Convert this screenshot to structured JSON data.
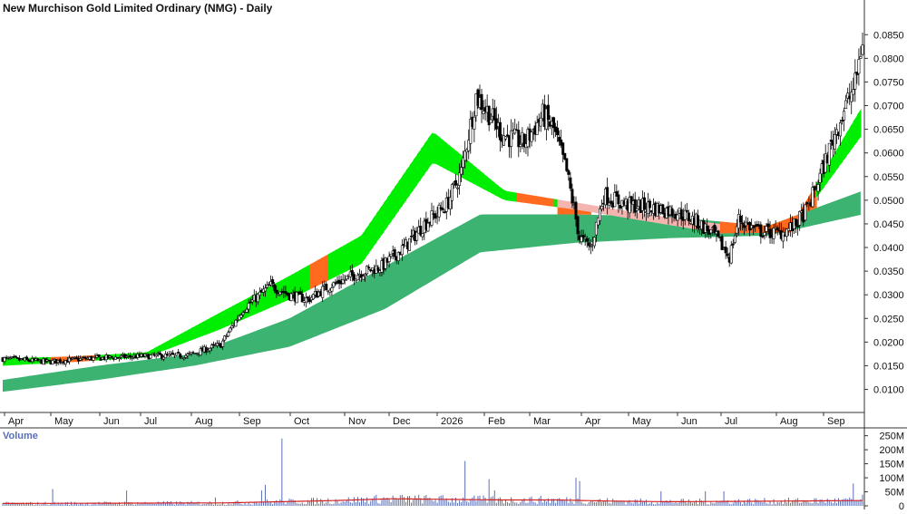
{
  "chart_data": {
    "type": "candlestick",
    "title": "New Murchison Gold Limited Ordinary (NMG) - Daily",
    "volume_label": "Volume",
    "price_axis": {
      "ticks": [
        "0.0850",
        "0.0800",
        "0.0750",
        "0.0700",
        "0.0650",
        "0.0600",
        "0.0550",
        "0.0500",
        "0.0450",
        "0.0400",
        "0.0350",
        "0.0300",
        "0.0250",
        "0.0200",
        "0.0150",
        "0.0100"
      ],
      "range": [
        0.0055,
        0.0885
      ]
    },
    "volume_axis": {
      "ticks": [
        "250M",
        "200M",
        "150M",
        "100M",
        "50M",
        "0"
      ],
      "range": [
        0,
        265
      ]
    },
    "months": [
      "Apr",
      "May",
      "Jun",
      "Jul",
      "Aug",
      "Sep",
      "Oct",
      "Nov",
      "Dec",
      "2026",
      "Feb",
      "Mar",
      "Apr",
      "May",
      "Jun",
      "Jul",
      "Aug",
      "Sep"
    ],
    "price_anchors": [
      [
        0,
        0.0165
      ],
      [
        25,
        0.0158
      ],
      [
        45,
        0.0165
      ],
      [
        75,
        0.017
      ],
      [
        100,
        0.0172
      ],
      [
        118,
        0.0195
      ],
      [
        130,
        0.027
      ],
      [
        145,
        0.032
      ],
      [
        155,
        0.03
      ],
      [
        165,
        0.029
      ],
      [
        175,
        0.0315
      ],
      [
        192,
        0.0345
      ],
      [
        205,
        0.036
      ],
      [
        217,
        0.04
      ],
      [
        228,
        0.045
      ],
      [
        240,
        0.049
      ],
      [
        248,
        0.056
      ],
      [
        256,
        0.072
      ],
      [
        262,
        0.069
      ],
      [
        270,
        0.064
      ],
      [
        282,
        0.062
      ],
      [
        292,
        0.068
      ],
      [
        298,
        0.065
      ],
      [
        305,
        0.056
      ],
      [
        312,
        0.042
      ],
      [
        318,
        0.04
      ],
      [
        325,
        0.051
      ],
      [
        338,
        0.049
      ],
      [
        350,
        0.0485
      ],
      [
        365,
        0.0475
      ],
      [
        375,
        0.0455
      ],
      [
        385,
        0.0425
      ],
      [
        393,
        0.038
      ],
      [
        398,
        0.046
      ],
      [
        408,
        0.0435
      ],
      [
        420,
        0.043
      ],
      [
        428,
        0.0445
      ],
      [
        435,
        0.048
      ],
      [
        442,
        0.055
      ],
      [
        450,
        0.064
      ],
      [
        456,
        0.07
      ],
      [
        461,
        0.0745
      ],
      [
        465,
        0.084
      ]
    ],
    "trend_bands": [
      {
        "name": "short-term",
        "upper": [
          0.0165,
          0.017,
          0.0178,
          0.026,
          0.034,
          0.0425,
          0.0645,
          0.052,
          0.0495,
          0.047,
          0.045,
          0.0445,
          0.07
        ],
        "lower": [
          0.015,
          0.0158,
          0.0168,
          0.0225,
          0.029,
          0.0365,
          0.058,
          0.05,
          0.048,
          0.0455,
          0.043,
          0.0432,
          0.064
        ]
      },
      {
        "name": "long-term",
        "upper": [
          0.012,
          0.015,
          0.0175,
          0.025,
          0.036,
          0.047,
          0.047,
          0.0465,
          0.0445,
          0.052
        ],
        "lower": [
          0.0095,
          0.012,
          0.015,
          0.019,
          0.027,
          0.039,
          0.041,
          0.042,
          0.0425,
          0.047
        ]
      }
    ],
    "volume_profile": [
      [
        0,
        8
      ],
      [
        60,
        9
      ],
      [
        120,
        10
      ],
      [
        150,
        14
      ],
      [
        180,
        18
      ],
      [
        210,
        24
      ],
      [
        240,
        22
      ],
      [
        270,
        20
      ],
      [
        300,
        20
      ],
      [
        330,
        16
      ],
      [
        360,
        14
      ],
      [
        390,
        15
      ],
      [
        420,
        16
      ],
      [
        465,
        18
      ]
    ],
    "volume_spikes": [
      [
        27,
        60
      ],
      [
        67,
        55
      ],
      [
        115,
        30
      ],
      [
        140,
        55
      ],
      [
        142,
        75
      ],
      [
        151,
        240
      ],
      [
        250,
        160
      ],
      [
        263,
        95
      ],
      [
        266,
        55
      ],
      [
        310,
        100
      ],
      [
        312,
        88
      ],
      [
        356,
        52
      ],
      [
        380,
        52
      ],
      [
        390,
        52
      ],
      [
        460,
        80
      ],
      [
        465,
        40
      ]
    ],
    "colors": {
      "up_candle": "#ffffff",
      "down_candle": "#000000",
      "short_band_up": "#00ee00",
      "short_band_down": "#ff6a1f",
      "short_band_fading": "#f4b5b0",
      "long_band": "#3cb371",
      "volume_bar": "#5a6fb4",
      "volume_avg": "#d62020",
      "axis": "#333333"
    }
  }
}
